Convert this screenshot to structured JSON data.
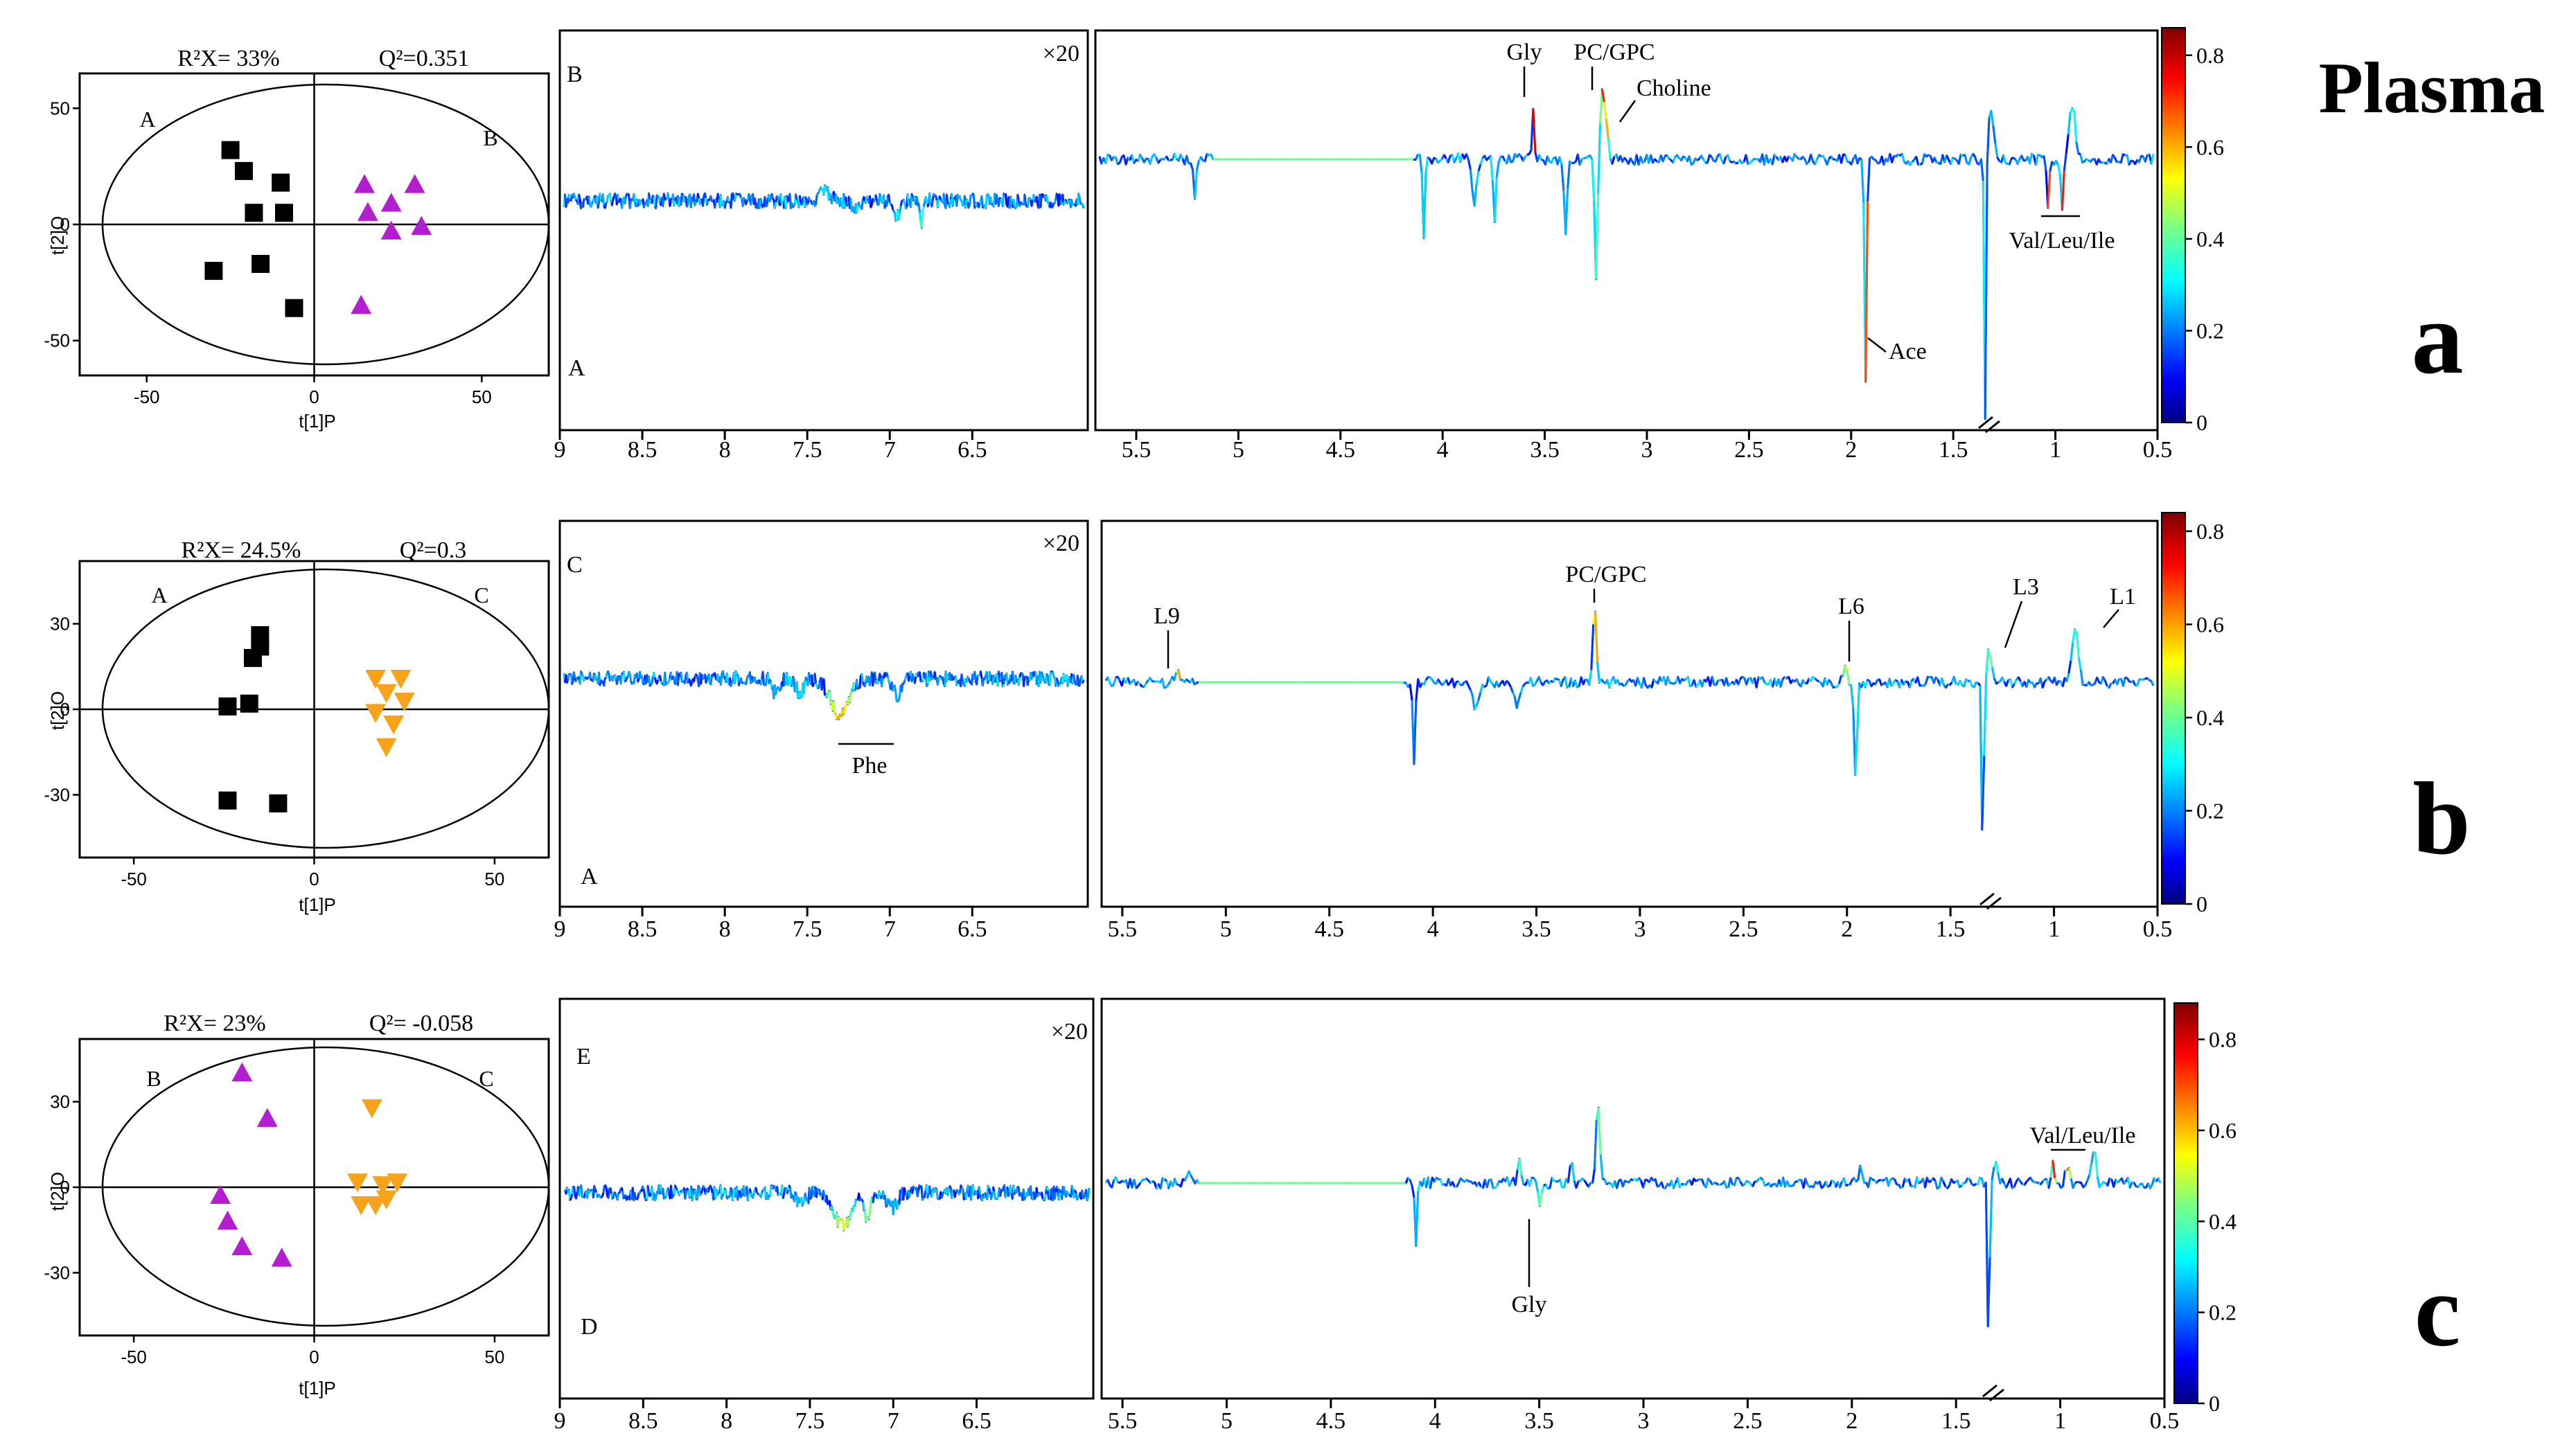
{
  "side_label": "Plasma",
  "panels": [
    {
      "letter": "a",
      "score_plot": {
        "r2x": "R²X= 33%",
        "q2": "Q²=0.351",
        "left_group": "A",
        "right_group": "B",
        "x_axis_label": "t[1]P",
        "y_axis_label": "t[2]O",
        "x_ticks": [
          -50,
          0,
          50
        ],
        "y_ticks": [
          -50,
          0,
          50
        ],
        "xlim": [
          -70,
          70
        ],
        "ylim": [
          -65,
          65
        ],
        "left_marker": "square",
        "left_color": "#000000",
        "left_points": [
          [
            -25,
            32
          ],
          [
            -21,
            23
          ],
          [
            -10,
            18
          ],
          [
            -18,
            5
          ],
          [
            -9,
            5
          ],
          [
            -30,
            -20
          ],
          [
            -16,
            -17
          ],
          [
            -6,
            -36
          ]
        ],
        "right_marker": "triangle-up",
        "right_color": "#b41ed1",
        "right_points": [
          [
            15,
            17
          ],
          [
            30,
            17
          ],
          [
            23,
            9
          ],
          [
            16,
            5
          ],
          [
            23,
            -3
          ],
          [
            32,
            -1
          ],
          [
            14,
            -35
          ]
        ]
      },
      "aromatic": {
        "top_label": "B",
        "bottom_label": "A",
        "zoom": "×20",
        "x_ticks": [
          "9",
          "8.5",
          "8",
          "7.5",
          "7",
          "6.5"
        ],
        "xlim": [
          9.0,
          5.8
        ]
      },
      "aliphatic": {
        "x_ticks": [
          "5.5",
          "5",
          "4.5",
          "4",
          "3.5",
          "3",
          "2.5",
          "2",
          "1.5",
          "1",
          "0.5"
        ],
        "xlim": [
          5.7,
          0.5
        ],
        "annotations": [
          "Gly",
          "PC/GPC",
          "Choline",
          "Ace",
          "Val/Leu/Ile"
        ]
      },
      "colorbar": {
        "ticks": [
          "0",
          "0.2",
          "0.4",
          "0.6",
          "0.8"
        ],
        "max": 0.86
      }
    },
    {
      "letter": "b",
      "score_plot": {
        "r2x": "R²X= 24.5%",
        "q2": "Q²=0.3",
        "left_group": "A",
        "right_group": "C",
        "x_axis_label": "t[1]P",
        "y_axis_label": "t[2]O",
        "x_ticks": [
          -50,
          0,
          50
        ],
        "y_ticks": [
          -30,
          0,
          30
        ],
        "xlim": [
          -65,
          65
        ],
        "ylim": [
          -52,
          52
        ],
        "left_marker": "square",
        "left_color": "#000000",
        "left_points": [
          [
            -15,
            26
          ],
          [
            -15,
            22
          ],
          [
            -17,
            18
          ],
          [
            -24,
            1
          ],
          [
            -18,
            2
          ],
          [
            -24,
            -32
          ],
          [
            -10,
            -33
          ]
        ],
        "right_marker": "triangle-down",
        "right_color": "#f7a21b",
        "right_points": [
          [
            17,
            11
          ],
          [
            24,
            11
          ],
          [
            20,
            6
          ],
          [
            25,
            3
          ],
          [
            17,
            -1
          ],
          [
            22,
            -5
          ],
          [
            20,
            -13
          ]
        ]
      },
      "aromatic": {
        "top_label": "C",
        "bottom_label": "A",
        "zoom": "×20",
        "x_ticks": [
          "9",
          "8.5",
          "8",
          "7.5",
          "7",
          "6.5"
        ],
        "xlim": [
          9.0,
          5.8
        ],
        "annotations": [
          "Phe"
        ]
      },
      "aliphatic": {
        "x_ticks": [
          "5.5",
          "5",
          "4.5",
          "4",
          "3.5",
          "3",
          "2.5",
          "2",
          "1.5",
          "1",
          "0.5"
        ],
        "xlim": [
          5.6,
          0.5
        ],
        "annotations": [
          "L9",
          "PC/GPC",
          "L6",
          "L3",
          "L1"
        ]
      },
      "colorbar": {
        "ticks": [
          "0",
          "0.2",
          "0.4",
          "0.6",
          "0.8"
        ],
        "max": 0.84
      }
    },
    {
      "letter": "c",
      "score_plot": {
        "r2x": "R²X= 23%",
        "q2": "Q²= -0.058",
        "left_group": "B",
        "right_group": "C",
        "x_axis_label": "t[1]P",
        "y_axis_label": "t[2]O",
        "x_ticks": [
          -50,
          0,
          50
        ],
        "y_ticks": [
          -30,
          0,
          30
        ],
        "xlim": [
          -65,
          65
        ],
        "ylim": [
          -52,
          52
        ],
        "left_marker": "triangle-up",
        "left_color": "#b41ed1",
        "left_points": [
          [
            -20,
            40
          ],
          [
            -13,
            24
          ],
          [
            -26,
            -3
          ],
          [
            -24,
            -12
          ],
          [
            -20,
            -21
          ],
          [
            -9,
            -25
          ]
        ],
        "right_marker": "triangle-down",
        "right_color": "#f7a21b",
        "right_points": [
          [
            16,
            28
          ],
          [
            12,
            2
          ],
          [
            19,
            1
          ],
          [
            23,
            2
          ],
          [
            13,
            -6
          ],
          [
            17,
            -6
          ],
          [
            20,
            -4
          ]
        ]
      },
      "aromatic": {
        "top_label": "E",
        "bottom_label": "D",
        "zoom": "×20",
        "x_ticks": [
          "9",
          "8.5",
          "8",
          "7.5",
          "7",
          "6.5"
        ],
        "xlim": [
          9.0,
          5.8
        ]
      },
      "aliphatic": {
        "x_ticks": [
          "5.5",
          "5",
          "4.5",
          "4",
          "3.5",
          "3",
          "2.5",
          "2",
          "1.5",
          "1",
          "0.5"
        ],
        "xlim": [
          5.6,
          0.5
        ],
        "annotations": [
          "Gly",
          "Val/Leu/Ile"
        ]
      },
      "colorbar": {
        "ticks": [
          "0",
          "0.2",
          "0.4",
          "0.6",
          "0.8"
        ],
        "max": 0.88
      }
    }
  ]
}
